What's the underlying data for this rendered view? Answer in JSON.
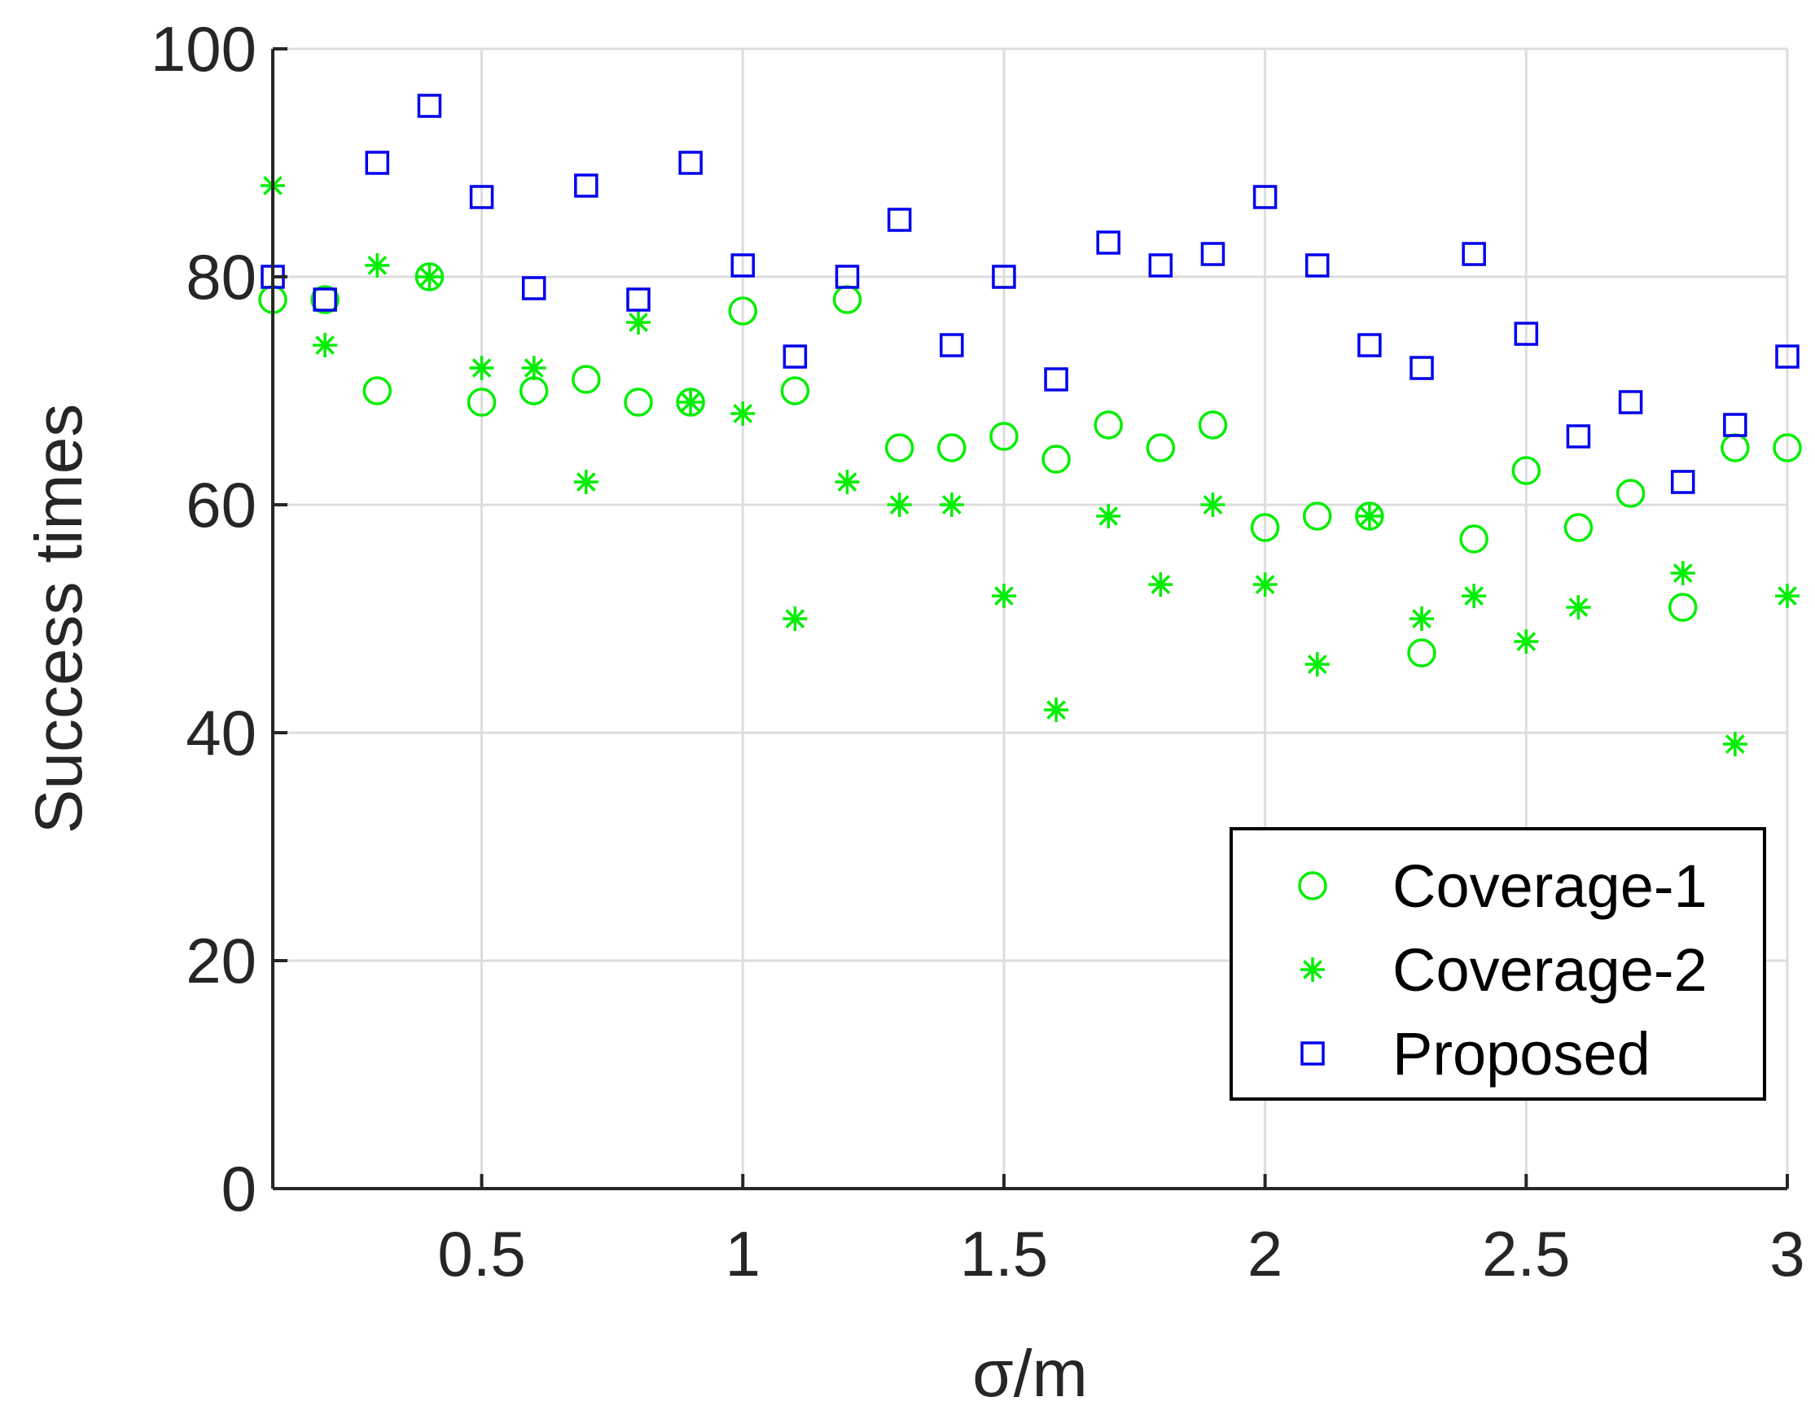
{
  "chart_data": {
    "type": "scatter",
    "title": "",
    "xlabel": "σ/m",
    "ylabel": "Success times",
    "xlim": [
      0.1,
      3
    ],
    "ylim": [
      0,
      100
    ],
    "xticks": [
      0.5,
      1,
      1.5,
      2,
      2.5,
      3
    ],
    "xtick_labels": [
      "0.5",
      "1",
      "1.5",
      "2",
      "2.5",
      "3"
    ],
    "yticks": [
      0,
      20,
      40,
      60,
      80,
      100
    ],
    "ytick_labels": [
      "0",
      "20",
      "40",
      "60",
      "80",
      "100"
    ],
    "grid": true,
    "legend_position": "bottom-right",
    "x": [
      0.1,
      0.2,
      0.3,
      0.4,
      0.5,
      0.6,
      0.7,
      0.8,
      0.9,
      1.0,
      1.1,
      1.2,
      1.3,
      1.4,
      1.5,
      1.6,
      1.7,
      1.8,
      1.9,
      2.0,
      2.1,
      2.2,
      2.3,
      2.4,
      2.5,
      2.6,
      2.7,
      2.8,
      2.9,
      3.0
    ],
    "series": [
      {
        "name": "Coverage-1",
        "marker": "circle",
        "color": "#00ee00",
        "values": [
          78,
          78,
          70,
          80,
          69,
          70,
          71,
          69,
          69,
          77,
          70,
          78,
          65,
          65,
          66,
          64,
          67,
          65,
          67,
          58,
          59,
          59,
          47,
          57,
          63,
          58,
          61,
          51,
          65,
          65
        ]
      },
      {
        "name": "Coverage-2",
        "marker": "asterisk",
        "color": "#00ee00",
        "values": [
          88,
          74,
          81,
          80,
          72,
          72,
          62,
          76,
          69,
          68,
          50,
          62,
          60,
          60,
          52,
          42,
          59,
          53,
          60,
          53,
          46,
          59,
          50,
          52,
          48,
          51,
          null,
          54,
          39,
          52
        ]
      },
      {
        "name": "Proposed",
        "marker": "square",
        "color": "#0000ee",
        "values": [
          80,
          78,
          90,
          95,
          87,
          79,
          88,
          78,
          90,
          81,
          73,
          80,
          85,
          74,
          80,
          71,
          83,
          81,
          82,
          87,
          81,
          74,
          72,
          82,
          75,
          66,
          69,
          62,
          67,
          73
        ]
      }
    ]
  }
}
